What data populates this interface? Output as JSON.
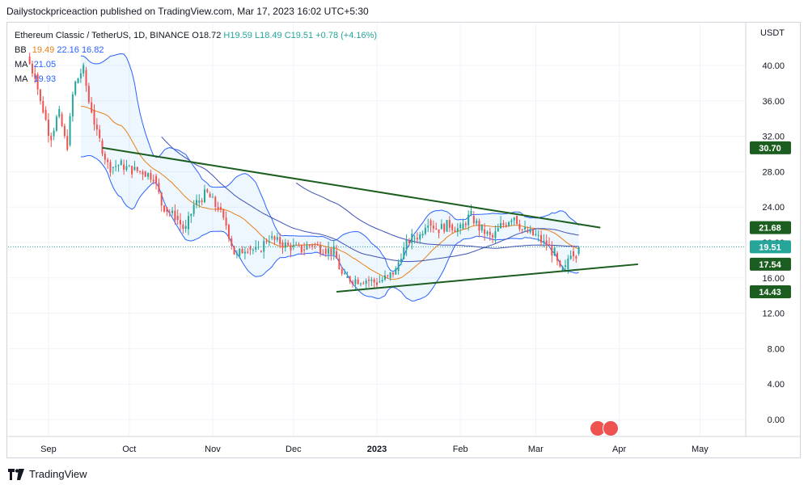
{
  "header": {
    "publisher_text": "Dailystockpriceaction published on TradingView.com, Mar 17, 2023 16:02 UTC+5:30"
  },
  "legend": {
    "symbol": "Ethereum Classic / TetherUS, 1D, BINANCE",
    "ohlc": {
      "o": "O18.72",
      "h": "H19.59",
      "l": "L18.49",
      "c": "C19.51",
      "chg": "+0.78 (+4.16%)"
    },
    "bb": {
      "label": "BB",
      "basis": "19.49",
      "upper": "22.16",
      "lower": "16.82"
    },
    "ma1": {
      "label": "MA",
      "value": "21.05"
    },
    "ma2": {
      "label": "MA",
      "value": "19.93"
    }
  },
  "footer": {
    "brand": "TradingView"
  },
  "chart_data": {
    "type": "candlestick",
    "title": "Ethereum Classic / TetherUS, 1D, BINANCE",
    "currency_label": "USDT",
    "ylim": [
      0,
      44
    ],
    "y_ticks": [
      "0.00",
      "4.00",
      "8.00",
      "12.00",
      "16.00",
      "20.00",
      "24.00",
      "28.00",
      "32.00",
      "36.00",
      "40.00"
    ],
    "x_ticks": [
      "Sep",
      "Oct",
      "Nov",
      "Dec",
      "2023",
      "Feb",
      "Mar",
      "Apr",
      "May"
    ],
    "price_labels": [
      {
        "value": 30.7,
        "text": "30.70",
        "color": "#1b5e20"
      },
      {
        "value": 21.68,
        "text": "21.68",
        "color": "#1b5e20"
      },
      {
        "value": 19.51,
        "text": "19.51",
        "color": "#26a69a"
      },
      {
        "value": 17.54,
        "text": "17.54",
        "color": "#1b5e20"
      },
      {
        "value": 14.43,
        "text": "14.43",
        "color": "#1b5e20"
      }
    ],
    "current_price": 19.51,
    "candles_sampled": [
      [
        "2022-08-25",
        41.0,
        41.5,
        38.0,
        39.0
      ],
      [
        "2022-08-28",
        39.0,
        40.0,
        34.0,
        35.0
      ],
      [
        "2022-08-31",
        35.0,
        36.0,
        31.5,
        32.0
      ],
      [
        "2022-09-03",
        32.0,
        35.5,
        31.0,
        34.5
      ],
      [
        "2022-09-06",
        34.5,
        35.0,
        30.5,
        31.0
      ],
      [
        "2022-09-09",
        31.0,
        38.5,
        31.0,
        38.0
      ],
      [
        "2022-09-12",
        38.0,
        40.5,
        35.0,
        39.5
      ],
      [
        "2022-09-15",
        39.5,
        40.5,
        34.0,
        35.0
      ],
      [
        "2022-09-18",
        35.0,
        35.5,
        31.0,
        31.5
      ],
      [
        "2022-09-21",
        31.5,
        32.0,
        27.5,
        28.5
      ],
      [
        "2022-09-25",
        28.5,
        29.5,
        27.5,
        28.8
      ],
      [
        "2022-09-29",
        28.8,
        29.5,
        27.8,
        28.2
      ],
      [
        "2022-10-03",
        28.2,
        29.0,
        27.5,
        28.0
      ],
      [
        "2022-10-07",
        28.0,
        29.0,
        27.0,
        27.5
      ],
      [
        "2022-10-11",
        27.5,
        28.0,
        23.5,
        24.0
      ],
      [
        "2022-10-15",
        24.0,
        24.8,
        22.5,
        23.0
      ],
      [
        "2022-10-19",
        23.0,
        23.5,
        21.0,
        21.5
      ],
      [
        "2022-10-23",
        21.5,
        25.0,
        21.0,
        24.5
      ],
      [
        "2022-10-27",
        24.5,
        26.5,
        23.5,
        25.5
      ],
      [
        "2022-10-31",
        25.5,
        27.5,
        23.5,
        24.0
      ],
      [
        "2022-11-04",
        24.0,
        24.5,
        21.5,
        22.0
      ],
      [
        "2022-11-07",
        22.0,
        22.5,
        17.5,
        18.5
      ],
      [
        "2022-11-11",
        18.5,
        20.5,
        18.0,
        19.5
      ],
      [
        "2022-11-15",
        19.5,
        20.0,
        18.5,
        19.0
      ],
      [
        "2022-11-19",
        19.0,
        21.0,
        18.5,
        20.5
      ],
      [
        "2022-11-23",
        20.5,
        21.5,
        19.5,
        20.0
      ],
      [
        "2022-11-27",
        20.0,
        20.5,
        19.0,
        19.5
      ],
      [
        "2022-12-01",
        19.5,
        20.0,
        18.8,
        19.2
      ],
      [
        "2022-12-05",
        19.2,
        20.2,
        18.8,
        19.8
      ],
      [
        "2022-12-09",
        19.8,
        20.0,
        19.0,
        19.3
      ],
      [
        "2022-12-13",
        19.3,
        19.8,
        18.5,
        19.0
      ],
      [
        "2022-12-17",
        19.0,
        19.2,
        15.5,
        16.0
      ],
      [
        "2022-12-21",
        16.0,
        16.5,
        15.3,
        15.8
      ],
      [
        "2022-12-25",
        15.8,
        16.2,
        15.3,
        15.8
      ],
      [
        "2022-12-29",
        15.8,
        16.0,
        15.0,
        15.5
      ],
      [
        "2023-01-02",
        15.5,
        16.2,
        15.2,
        16.0
      ],
      [
        "2023-01-06",
        16.0,
        17.0,
        15.8,
        16.8
      ],
      [
        "2023-01-09",
        16.8,
        19.5,
        16.5,
        19.2
      ],
      [
        "2023-01-12",
        19.2,
        21.0,
        18.8,
        20.5
      ],
      [
        "2023-01-15",
        20.5,
        21.2,
        19.8,
        20.8
      ],
      [
        "2023-01-18",
        20.8,
        23.5,
        20.5,
        22.5
      ],
      [
        "2023-01-21",
        22.5,
        23.0,
        21.0,
        21.5
      ],
      [
        "2023-01-25",
        21.5,
        22.8,
        21.0,
        22.0
      ],
      [
        "2023-01-29",
        22.0,
        22.8,
        21.0,
        21.5
      ],
      [
        "2023-02-02",
        21.5,
        24.0,
        21.5,
        23.0
      ],
      [
        "2023-02-06",
        23.0,
        23.5,
        21.0,
        21.5
      ],
      [
        "2023-02-10",
        21.5,
        22.0,
        20.0,
        20.5
      ],
      [
        "2023-02-14",
        20.5,
        22.5,
        20.2,
        22.0
      ],
      [
        "2023-02-18",
        22.0,
        23.8,
        21.5,
        23.0
      ],
      [
        "2023-02-22",
        23.0,
        23.2,
        21.0,
        21.3
      ],
      [
        "2023-02-26",
        21.3,
        21.8,
        20.3,
        20.8
      ],
      [
        "2023-03-02",
        20.8,
        21.0,
        19.5,
        19.8
      ],
      [
        "2023-03-06",
        19.8,
        20.0,
        18.5,
        18.8
      ],
      [
        "2023-03-09",
        18.8,
        19.0,
        16.5,
        16.8
      ],
      [
        "2023-03-11",
        16.8,
        17.2,
        16.0,
        17.0
      ],
      [
        "2023-03-13",
        17.0,
        19.5,
        16.8,
        19.0
      ],
      [
        "2023-03-15",
        19.0,
        20.5,
        18.3,
        18.8
      ],
      [
        "2023-03-17",
        18.72,
        19.59,
        18.49,
        19.51
      ]
    ],
    "trendlines": [
      {
        "name": "descending-resistance",
        "from": [
          "2022-09-21",
          30.7
        ],
        "to": [
          "2023-03-25",
          21.68
        ]
      },
      {
        "name": "ascending-support",
        "from": [
          "2022-12-17",
          14.43
        ],
        "to": [
          "2023-04-08",
          17.54
        ]
      }
    ],
    "grid": true
  }
}
